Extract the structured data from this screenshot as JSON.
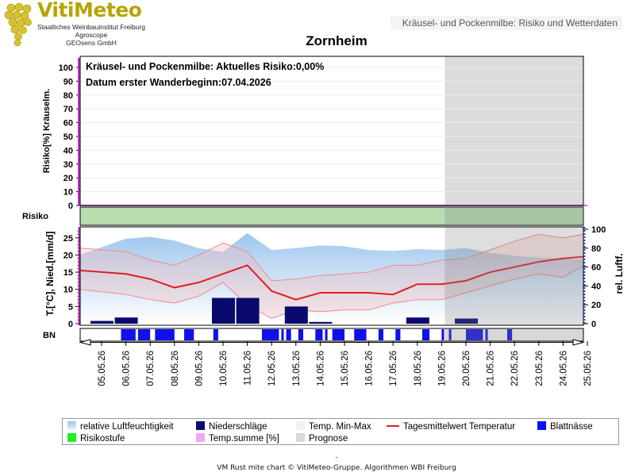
{
  "logo": {
    "name": "VitiMeteo",
    "lines": [
      "Staatliches Weinbauinstitut Freiburg",
      "Agroscope",
      "GEOsens GmbH"
    ]
  },
  "header_title": "Kräusel- und Pockenmilbe: Risiko und Wetterdaten",
  "chart_data": {
    "type": "line",
    "title": "Zornheim",
    "dates": [
      "05.05.26",
      "06.05.26",
      "07.05.26",
      "08.05.26",
      "09.05.26",
      "10.05.26",
      "11.05.26",
      "12.05.26",
      "13.05.26",
      "14.05.26",
      "15.05.26",
      "16.05.26",
      "17.05.26",
      "18.05.26",
      "19.05.26",
      "20.05.26",
      "21.05.26",
      "22.05.26",
      "23.05.26",
      "24.05.26",
      "25.05.26"
    ],
    "prognose_from": "19.05.26",
    "risk_panel": {
      "ylabel": "Risiko[%] Kräuselm.",
      "ylim": [
        0,
        100
      ],
      "yticks": [
        0,
        10,
        20,
        30,
        40,
        50,
        60,
        70,
        80,
        90,
        100
      ],
      "annotation_1": "Kräusel- und Pockenmilbe: Aktuelles Risiko:0,00%",
      "annotation_2": "Datum  erster Wanderbeginn:07.04.2026",
      "temp_sum_percent": [
        0,
        0,
        0,
        0,
        0,
        0,
        0,
        0,
        0,
        0,
        0,
        0,
        0,
        0,
        0,
        0,
        0,
        0,
        0,
        0,
        0
      ]
    },
    "risk_stripe": {
      "label": "Risiko",
      "color": "#b8dcb0"
    },
    "weather_panel": {
      "ylabel_left": "T.[°C], Nied.[mm/d]",
      "ylabel_right": "rel. Luftf.",
      "ylim_left": [
        0,
        27
      ],
      "yticks_left": [
        0,
        5,
        10,
        15,
        20,
        25
      ],
      "ylim_right": [
        0,
        100
      ],
      "yticks_right": [
        0,
        20,
        40,
        60,
        80,
        100
      ],
      "series": [
        {
          "name": "relative Luftfeuchtigkeit",
          "values": [
            73,
            90,
            92,
            88,
            80,
            76,
            96,
            78,
            80,
            83,
            82,
            78,
            77,
            79,
            78,
            80,
            75,
            72,
            70,
            69,
            68
          ]
        },
        {
          "name": "Niederschläge",
          "values": [
            0.8,
            1.8,
            0,
            0,
            0,
            7.5,
            7.5,
            0,
            5,
            0.5,
            0,
            0,
            0,
            1.8,
            0,
            1.5,
            0,
            0,
            0,
            0,
            0
          ]
        },
        {
          "name": "Temp. Min",
          "values": [
            10,
            8.5,
            7,
            6,
            8,
            12,
            5.5,
            1.5,
            4,
            3.5,
            4,
            4,
            6,
            7,
            7,
            9,
            11,
            13,
            14.5,
            13.5,
            17
          ]
        },
        {
          "name": "Temp. Max",
          "values": [
            22,
            21,
            18.5,
            17,
            20,
            23.5,
            21,
            12.5,
            13,
            14,
            14.5,
            15,
            17,
            17,
            18.5,
            19,
            21.5,
            24,
            26,
            25,
            26
          ]
        },
        {
          "name": "Tagesmittelwert Temperatur",
          "values": [
            15.5,
            14.5,
            13,
            10.5,
            12,
            14.5,
            17,
            9.5,
            7,
            9,
            9,
            9,
            8.5,
            11.5,
            11.5,
            12.5,
            15,
            16.5,
            18,
            19,
            19.5
          ]
        }
      ]
    },
    "blattnaesse": {
      "label": "BN",
      "intervals": [
        [
          0.8,
          1.4
        ],
        [
          1.5,
          2.0
        ],
        [
          2.2,
          3.0
        ],
        [
          3.4,
          3.8
        ],
        [
          4.6,
          4.8
        ],
        [
          6.6,
          7.3
        ],
        [
          7.4,
          7.5
        ],
        [
          7.6,
          7.8
        ],
        [
          8.1,
          8.3
        ],
        [
          8.8,
          9.1
        ],
        [
          9.2,
          9.3
        ],
        [
          9.5,
          10.0
        ],
        [
          10.4,
          10.9
        ],
        [
          11.4,
          11.6
        ],
        [
          12.1,
          12.3
        ],
        [
          13.2,
          13.5
        ],
        [
          14.0,
          14.1
        ],
        [
          14.3,
          14.4
        ],
        [
          15.0,
          15.7
        ],
        [
          15.8,
          15.9
        ],
        [
          16.7,
          16.9
        ]
      ]
    },
    "legend": {
      "items": [
        {
          "label": "relative Luftfeuchtigkeit",
          "color": "#a8cdef"
        },
        {
          "label": "Niederschläge",
          "color": "#0a0a6e"
        },
        {
          "label": "Temp. Min-Max",
          "color": "#f2f2f2"
        },
        {
          "label": "Tagesmittelwert Temperatur",
          "color": "#e02020"
        },
        {
          "label": "Blattnässe",
          "color": "#1010ee"
        },
        {
          "label": "Risikostufe",
          "color": "#22ee22"
        },
        {
          "label": "Temp.summe [%]",
          "color": "#f0a8f0"
        },
        {
          "label": "Prognose",
          "color": "#d8d8d8"
        }
      ]
    }
  },
  "footer_dash": "-",
  "footer": "VM Rust mite chart © VitiMeteo-Gruppe. Algorithmen WBI Freiburg"
}
